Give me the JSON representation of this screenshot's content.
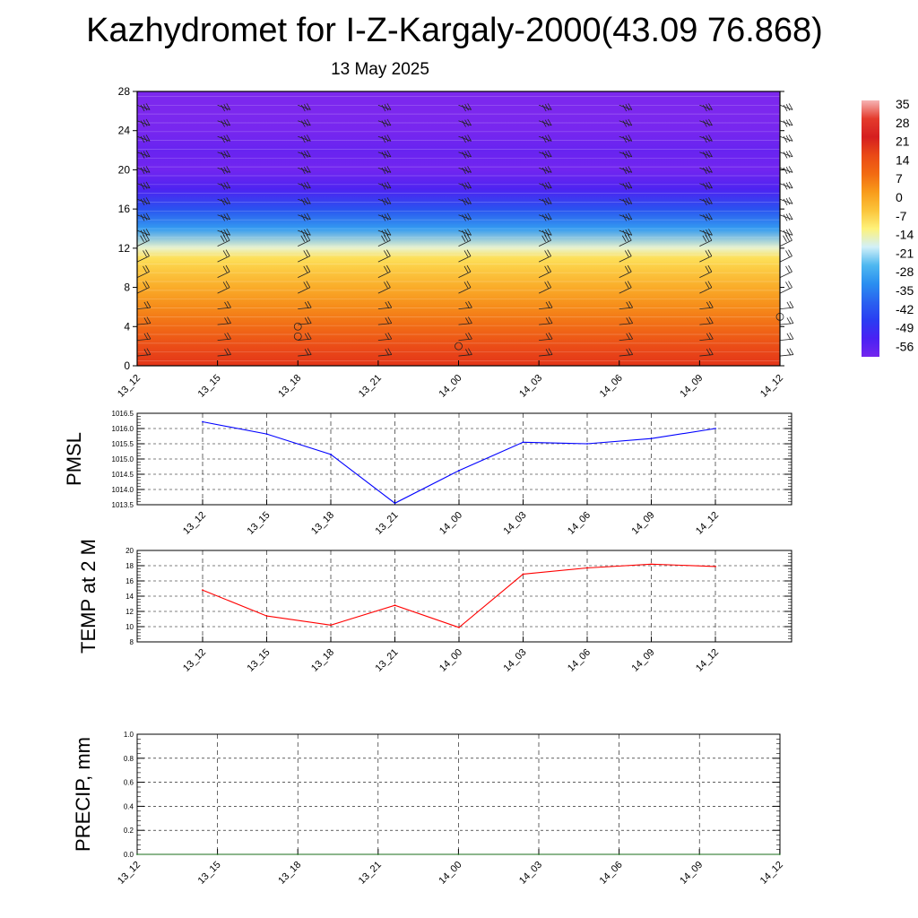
{
  "title": "Kazhydromet for I-Z-Kargaly-2000(43.09 76.868)",
  "subtitle": "13 May 2025",
  "chart_data": [
    {
      "type": "heatmap",
      "x_categories": [
        "13_12",
        "13_15",
        "13_18",
        "13_21",
        "14_00",
        "14_03",
        "14_06",
        "14_09",
        "14_12"
      ],
      "y_ticks": [
        0,
        4,
        8,
        12,
        16,
        20,
        24,
        28
      ],
      "ylim": [
        0,
        28
      ],
      "temperature_profile": {
        "height": [
          0,
          2,
          4,
          6,
          8,
          10,
          11,
          12,
          14,
          16,
          18,
          20,
          22,
          24,
          26,
          28
        ],
        "temperature": [
          26,
          21,
          16,
          10,
          4,
          -2,
          -6,
          -14,
          -28,
          -40,
          -52,
          -58,
          -56,
          -60,
          -62,
          -62
        ]
      },
      "colorbar": {
        "labels": [
          "35",
          "28",
          "21",
          "14",
          "7",
          "0",
          "-7",
          "-14",
          "-21",
          "-28",
          "-35",
          "-42",
          "-49",
          "-56"
        ],
        "colors": [
          "#f6b4b4",
          "#e43b2c",
          "#d51f1f",
          "#ea4a16",
          "#f26a12",
          "#f89b1a",
          "#fbc43a",
          "#fef27a",
          "#d2f0f8",
          "#4fb8f0",
          "#2a8ff0",
          "#2a62f0",
          "#2a3df2",
          "#4a21f3",
          "#7426ee"
        ]
      },
      "wind_barbs": "shown at each time column",
      "grid": false
    },
    {
      "type": "line",
      "ylabel": "PMSL",
      "x": [
        "13_12",
        "13_15",
        "13_18",
        "13_21",
        "14_00",
        "14_03",
        "14_06",
        "14_09",
        "14_12"
      ],
      "y_ticks": [
        "1013.5",
        "1014.0",
        "1014.5",
        "1015.0",
        "1015.5",
        "1016.0",
        "1016.5"
      ],
      "ylim": [
        1013.5,
        1016.5
      ],
      "series": [
        {
          "values": [
            1016.22,
            1015.82,
            1015.15,
            1013.55,
            1014.62,
            1015.55,
            1015.5,
            1015.67,
            1016.0
          ],
          "color": "#0000ff"
        }
      ],
      "grid": true
    },
    {
      "type": "line",
      "ylabel": "TEMP at 2 M",
      "x": [
        "13_12",
        "13_15",
        "13_18",
        "13_21",
        "14_00",
        "14_03",
        "14_06",
        "14_09",
        "14_12"
      ],
      "y_ticks": [
        "8",
        "10",
        "12",
        "14",
        "16",
        "18",
        "20"
      ],
      "ylim": [
        8,
        20
      ],
      "series": [
        {
          "values": [
            14.8,
            11.4,
            10.2,
            12.8,
            9.9,
            16.9,
            17.7,
            18.2,
            17.9
          ],
          "color": "#ff0000"
        }
      ],
      "grid": true
    },
    {
      "type": "line",
      "ylabel": "PRECIP, mm",
      "x_categories": [
        "13_12",
        "13_15",
        "13_18",
        "13_21",
        "14_00",
        "14_03",
        "14_06",
        "14_09",
        "14_12"
      ],
      "y_ticks": [
        "0.0",
        "0.2",
        "0.4",
        "0.6",
        "0.8",
        "1.0"
      ],
      "ylim": [
        0,
        1
      ],
      "series": [
        {
          "values": [
            0,
            0,
            0,
            0,
            0,
            0,
            0,
            0,
            0
          ],
          "color": "#1a6e1a"
        }
      ],
      "grid": true
    }
  ]
}
